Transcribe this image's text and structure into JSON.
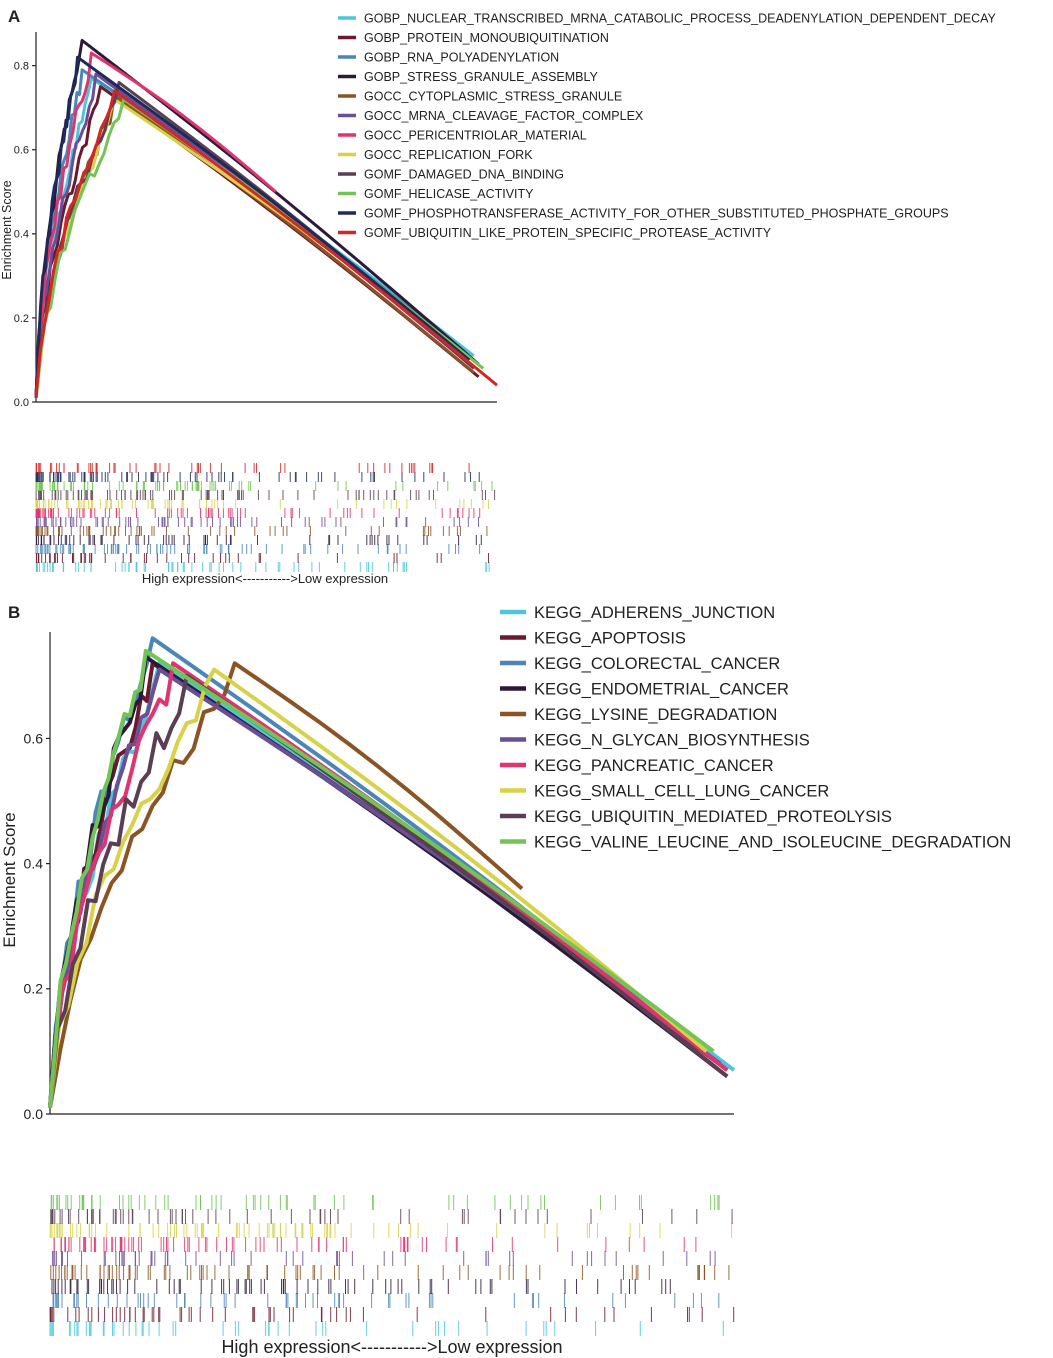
{
  "chart_data": [
    {
      "panel": "A",
      "type": "line",
      "ylabel": "Enrichment Score",
      "xlabel": "High expression<----------->Low expression",
      "ylim": [
        0,
        0.88
      ],
      "yticks": [
        "0.0",
        "0.2",
        "0.4",
        "0.6",
        "0.8"
      ],
      "grid": false,
      "legend_position": "top-right",
      "x_range": [
        0,
        1
      ],
      "series": [
        {
          "name": "GOBP_NUCLEAR_TRANSCRIBED_MRNA_CATABOLIC_PROCESS_DEADENYLATION_DEPENDENT_DECAY",
          "color": "#4cc6dc",
          "peak_x": 0.12,
          "peak_y": 0.77,
          "end_x": 0.95,
          "end_y": 0.11
        },
        {
          "name": "GOBP_PROTEIN_MONOUBIQUITINATION",
          "color": "#6b1a2c",
          "peak_x": 0.14,
          "peak_y": 0.75,
          "end_x": 0.96,
          "end_y": 0.06
        },
        {
          "name": "GOBP_RNA_POLYADENYLATION",
          "color": "#4a86b8",
          "peak_x": 0.1,
          "peak_y": 0.79,
          "end_x": 0.93,
          "end_y": 0.12
        },
        {
          "name": "GOBP_STRESS_GRANULE_ASSEMBLY",
          "color": "#2c1a3a",
          "peak_x": 0.1,
          "peak_y": 0.86,
          "end_x": 0.96,
          "end_y": 0.09
        },
        {
          "name": "GOCC_CYTOPLASMIC_STRESS_GRANULE",
          "color": "#8a5424",
          "peak_x": 0.17,
          "peak_y": 0.73,
          "end_x": 0.95,
          "end_y": 0.07
        },
        {
          "name": "GOCC_MRNA_CLEAVAGE_FACTOR_COMPLEX",
          "color": "#6b4f96",
          "peak_x": 0.13,
          "peak_y": 0.78,
          "end_x": 0.94,
          "end_y": 0.09
        },
        {
          "name": "GOCC_PERICENTRIOLAR_MATERIAL",
          "color": "#e0346e",
          "peak_x": 0.12,
          "peak_y": 0.83,
          "end_x": 0.52,
          "end_y": 0.5
        },
        {
          "name": "GOCC_REPLICATION_FORK",
          "color": "#d8d24a",
          "peak_x": 0.17,
          "peak_y": 0.72,
          "end_x": 0.97,
          "end_y": 0.08
        },
        {
          "name": "GOMF_DAMAGED_DNA_BINDING",
          "color": "#5a3f52",
          "peak_x": 0.18,
          "peak_y": 0.76,
          "end_x": 0.95,
          "end_y": 0.08
        },
        {
          "name": "GOMF_HELICASE_ACTIVITY",
          "color": "#72c456",
          "peak_x": 0.19,
          "peak_y": 0.72,
          "end_x": 0.97,
          "end_y": 0.08
        },
        {
          "name": "GOMF_PHOSPHOTRANSFERASE_ACTIVITY_FOR_OTHER_SUBSTITUTED_PHOSPHATE_GROUPS",
          "color": "#1e2a5c",
          "peak_x": 0.09,
          "peak_y": 0.82,
          "end_x": 0.94,
          "end_y": 0.1
        },
        {
          "name": "GOMF_UBIQUITIN_LIKE_PROTEIN_SPECIFIC_PROTEASE_ACTIVITY",
          "color": "#d42626",
          "peak_x": 0.17,
          "peak_y": 0.74,
          "end_x": 1.0,
          "end_y": 0.04
        }
      ]
    },
    {
      "panel": "B",
      "type": "line",
      "ylabel": "Enrichment Score",
      "xlabel": "High expression<----------->Low expression",
      "ylim": [
        0,
        0.77
      ],
      "yticks": [
        "0.0",
        "0.2",
        "0.4",
        "0.6"
      ],
      "grid": false,
      "legend_position": "top-right",
      "x_range": [
        0,
        1
      ],
      "series": [
        {
          "name": "KEGG_ADHERENS_JUNCTION",
          "color": "#4cc6dc",
          "peak_x": 0.16,
          "peak_y": 0.72,
          "end_x": 1.0,
          "end_y": 0.07
        },
        {
          "name": "KEGG_APOPTOSIS",
          "color": "#6b1a2c",
          "peak_x": 0.15,
          "peak_y": 0.72,
          "end_x": 0.99,
          "end_y": 0.07
        },
        {
          "name": "KEGG_COLORECTAL_CANCER",
          "color": "#4a86b8",
          "peak_x": 0.15,
          "peak_y": 0.76,
          "end_x": 0.99,
          "end_y": 0.07
        },
        {
          "name": "KEGG_ENDOMETRIAL_CANCER",
          "color": "#2c1a3a",
          "peak_x": 0.14,
          "peak_y": 0.73,
          "end_x": 0.99,
          "end_y": 0.06
        },
        {
          "name": "KEGG_LYSINE_DEGRADATION",
          "color": "#8a5424",
          "peak_x": 0.27,
          "peak_y": 0.72,
          "end_x": 0.69,
          "end_y": 0.36
        },
        {
          "name": "KEGG_N_GLYCAN_BIOSYNTHESIS",
          "color": "#6b4f96",
          "peak_x": 0.16,
          "peak_y": 0.71,
          "end_x": 0.98,
          "end_y": 0.08
        },
        {
          "name": "KEGG_PANCREATIC_CANCER",
          "color": "#e0346e",
          "peak_x": 0.18,
          "peak_y": 0.72,
          "end_x": 0.99,
          "end_y": 0.07
        },
        {
          "name": "KEGG_SMALL_CELL_LUNG_CANCER",
          "color": "#d8d24a",
          "peak_x": 0.24,
          "peak_y": 0.71,
          "end_x": 0.96,
          "end_y": 0.1
        },
        {
          "name": "KEGG_UBIQUITIN_MEDIATED_PROTEOLYSIS",
          "color": "#5a3f52",
          "peak_x": 0.2,
          "peak_y": 0.7,
          "end_x": 0.99,
          "end_y": 0.06
        },
        {
          "name": "KEGG_VALINE_LEUCINE_AND_ISOLEUCINE_DEGRADATION",
          "color": "#72c456",
          "peak_x": 0.14,
          "peak_y": 0.74,
          "end_x": 0.97,
          "end_y": 0.1
        }
      ]
    }
  ]
}
